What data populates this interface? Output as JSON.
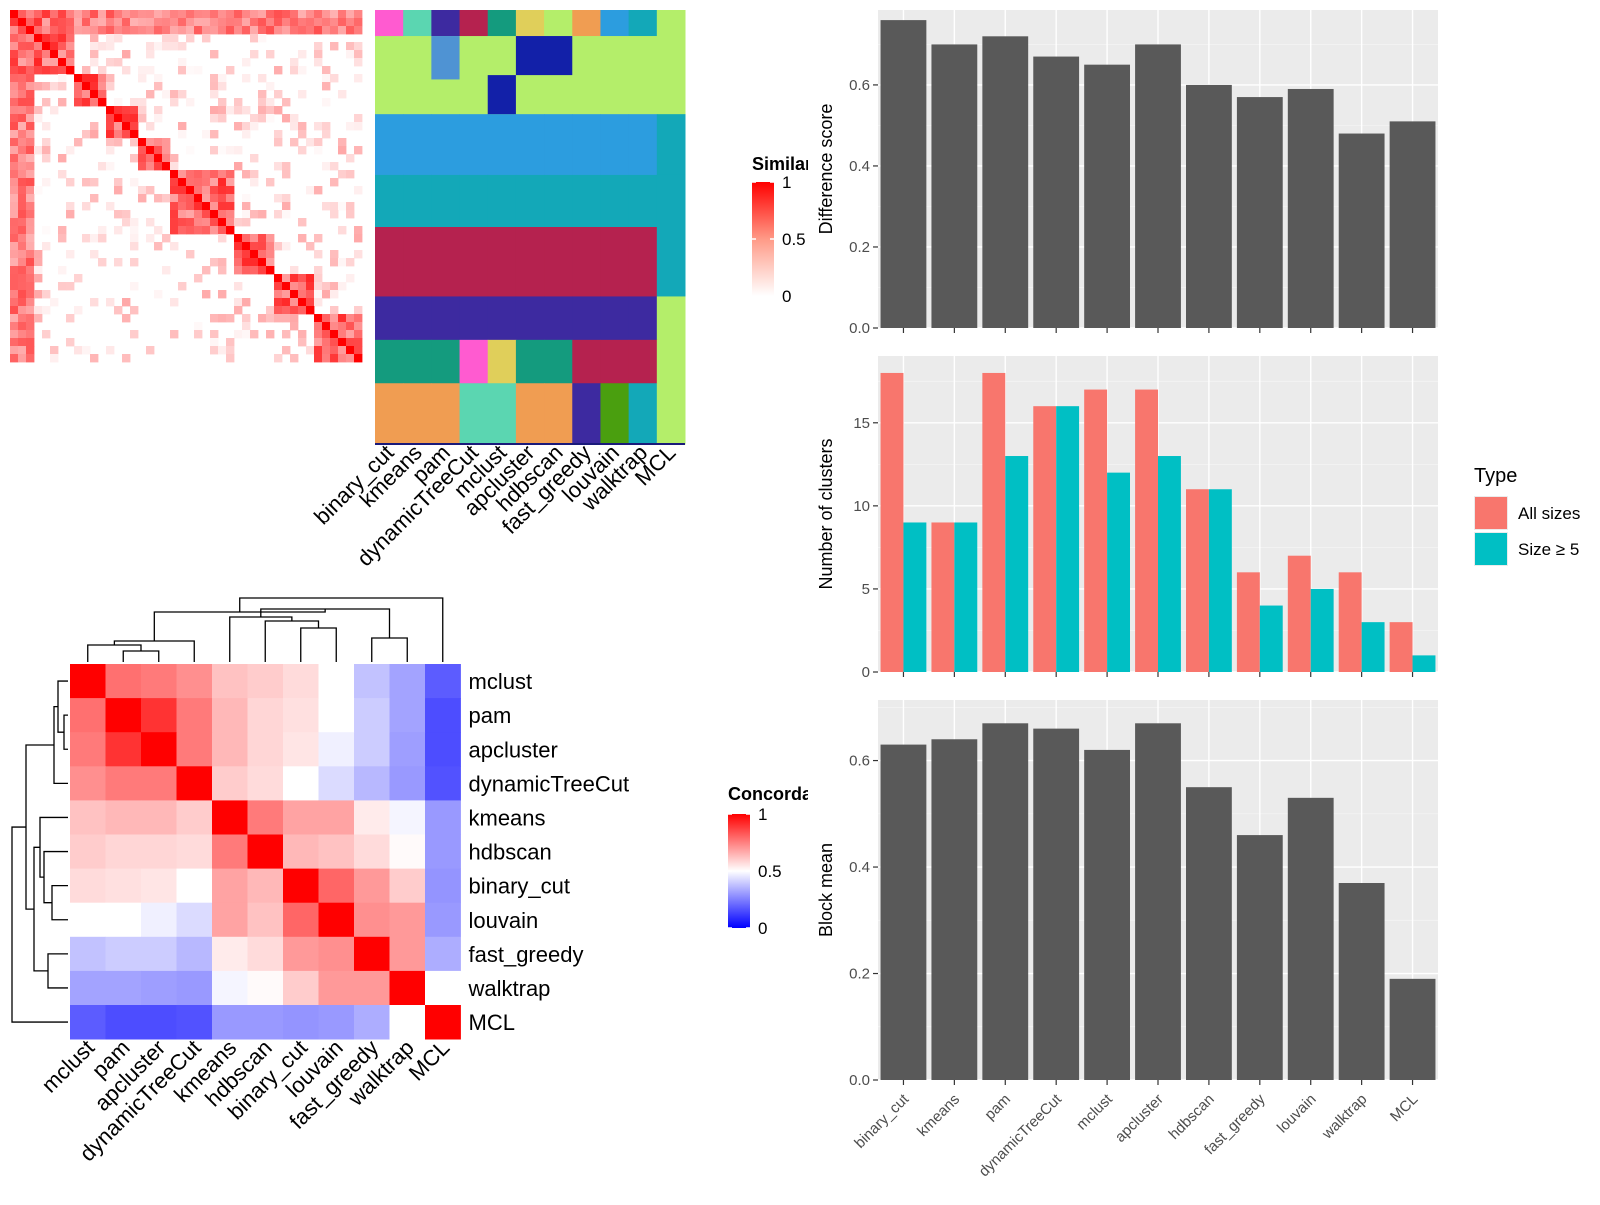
{
  "colors": {
    "panel_bg": "#ebebeb",
    "grid_major": "#ffffff",
    "bar_gray": "#595959",
    "all_sizes": "#f8766d",
    "size_ge5": "#00bfc4",
    "heat_high": "#ff0000",
    "heat_mid": "#ffffff",
    "heat_low": "#0000ff",
    "axis_text": "#4d4d4d"
  },
  "similarity_heatmap": {
    "legend_title": "Similarity",
    "legend_ticks": [
      "1",
      "0.5",
      "0"
    ],
    "legend_values": [
      1,
      0.5,
      0
    ],
    "column_labels": [
      "binary_cut",
      "kmeans",
      "pam",
      "dynamicTreeCut",
      "mclust",
      "apcluster",
      "hdbscan",
      "fast_greedy",
      "louvain",
      "walktrap",
      "MCL"
    ]
  },
  "concordance_heatmap": {
    "legend_title": "Concordance",
    "legend_ticks": [
      "1",
      "0.5",
      "0"
    ],
    "legend_values": [
      1,
      0.5,
      0
    ]
  },
  "chart_data": [
    {
      "type": "bar",
      "categories": [
        "binary_cut",
        "kmeans",
        "pam",
        "dynamicTreeCut",
        "mclust",
        "apcluster",
        "hdbscan",
        "fast_greedy",
        "louvain",
        "walktrap",
        "MCL"
      ],
      "values": [
        0.76,
        0.7,
        0.72,
        0.67,
        0.65,
        0.7,
        0.6,
        0.57,
        0.59,
        0.48,
        0.51
      ],
      "title": "",
      "xlabel": "",
      "ylabel": "Difference score",
      "ylim": [
        0,
        0.78
      ],
      "yticks": [
        "0.0",
        "0.2",
        "0.4",
        "0.6"
      ],
      "grid": true
    },
    {
      "type": "bar",
      "categories": [
        "binary_cut",
        "kmeans",
        "pam",
        "dynamicTreeCut",
        "mclust",
        "apcluster",
        "hdbscan",
        "fast_greedy",
        "louvain",
        "walktrap",
        "MCL"
      ],
      "series": [
        {
          "name": "All sizes",
          "values": [
            18,
            9,
            18,
            16,
            17,
            17,
            11,
            6,
            7,
            6,
            3
          ]
        },
        {
          "name": "Size ≥ 5",
          "values": [
            9,
            9,
            13,
            16,
            12,
            13,
            11,
            4,
            5,
            3,
            1
          ]
        }
      ],
      "title": "",
      "xlabel": "",
      "ylabel": "Number of clusters",
      "ylim": [
        0,
        18.9
      ],
      "yticks": [
        "0",
        "5",
        "10",
        "15"
      ],
      "legend_title": "Type",
      "legend_position": "right",
      "grid": true
    },
    {
      "type": "bar",
      "categories": [
        "binary_cut",
        "kmeans",
        "pam",
        "dynamicTreeCut",
        "mclust",
        "apcluster",
        "hdbscan",
        "fast_greedy",
        "louvain",
        "walktrap",
        "MCL"
      ],
      "values": [
        0.63,
        0.64,
        0.67,
        0.66,
        0.62,
        0.67,
        0.55,
        0.46,
        0.53,
        0.37,
        0.19
      ],
      "title": "",
      "xlabel": "",
      "ylabel": "Block mean",
      "ylim": [
        0,
        0.71
      ],
      "yticks": [
        "0.0",
        "0.2",
        "0.4",
        "0.6"
      ],
      "grid": true
    },
    {
      "type": "heatmap",
      "title": "",
      "rows": [
        "mclust",
        "pam",
        "apcluster",
        "dynamicTreeCut",
        "kmeans",
        "hdbscan",
        "binary_cut",
        "louvain",
        "fast_greedy",
        "walktrap",
        "MCL"
      ],
      "columns": [
        "mclust",
        "pam",
        "apcluster",
        "dynamicTreeCut",
        "kmeans",
        "hdbscan",
        "binary_cut",
        "louvain",
        "fast_greedy",
        "walktrap",
        "MCL"
      ],
      "values": [
        [
          1.0,
          0.78,
          0.76,
          0.72,
          0.62,
          0.6,
          0.57,
          0.5,
          0.38,
          0.32,
          0.18
        ],
        [
          0.78,
          1.0,
          0.9,
          0.76,
          0.64,
          0.58,
          0.56,
          0.5,
          0.4,
          0.32,
          0.15
        ],
        [
          0.76,
          0.9,
          1.0,
          0.76,
          0.64,
          0.58,
          0.55,
          0.47,
          0.4,
          0.31,
          0.15
        ],
        [
          0.72,
          0.76,
          0.76,
          1.0,
          0.6,
          0.57,
          0.5,
          0.43,
          0.36,
          0.3,
          0.16
        ],
        [
          0.62,
          0.64,
          0.64,
          0.6,
          1.0,
          0.76,
          0.68,
          0.68,
          0.54,
          0.48,
          0.3
        ],
        [
          0.6,
          0.58,
          0.58,
          0.57,
          0.76,
          1.0,
          0.64,
          0.62,
          0.57,
          0.51,
          0.3
        ],
        [
          0.57,
          0.56,
          0.55,
          0.5,
          0.68,
          0.64,
          1.0,
          0.8,
          0.7,
          0.6,
          0.29
        ],
        [
          0.5,
          0.5,
          0.47,
          0.43,
          0.68,
          0.62,
          0.8,
          1.0,
          0.72,
          0.7,
          0.3
        ],
        [
          0.38,
          0.4,
          0.4,
          0.36,
          0.54,
          0.57,
          0.7,
          0.72,
          1.0,
          0.7,
          0.34
        ],
        [
          0.32,
          0.32,
          0.31,
          0.3,
          0.48,
          0.51,
          0.6,
          0.7,
          0.7,
          1.0,
          0.5
        ],
        [
          0.18,
          0.15,
          0.15,
          0.16,
          0.3,
          0.3,
          0.29,
          0.3,
          0.34,
          0.5,
          1.0
        ]
      ],
      "value_range": [
        0,
        1
      ]
    }
  ]
}
